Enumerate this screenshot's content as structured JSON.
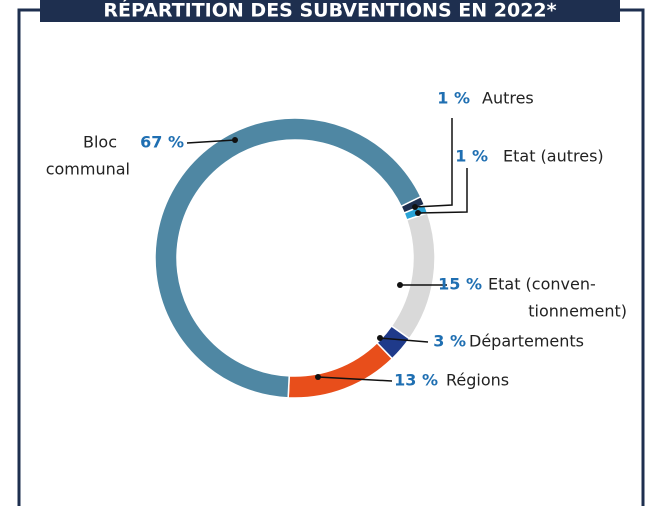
{
  "chart_data": {
    "type": "donut",
    "title": "RÉPARTITION DES SUBVENTIONS EN 2022*",
    "categories": [
      [
        "Autres"
      ],
      [
        "Etat (autres)"
      ],
      [
        "Etat (conven-",
        "tionnement)"
      ],
      [
        "Départements"
      ],
      [
        "Régions"
      ],
      [
        "Bloc",
        "communal"
      ]
    ],
    "values": [
      1,
      1,
      15,
      3,
      13,
      67
    ],
    "value_labels": [
      "1 %",
      "1 %",
      "15 %",
      "3 %",
      "13 %",
      "67 %"
    ],
    "colors": [
      "#1e2f4f",
      "#29a3d6",
      "#d9d9d9",
      "#1f3a8a",
      "#e84e1b",
      "#4f87a3"
    ]
  }
}
